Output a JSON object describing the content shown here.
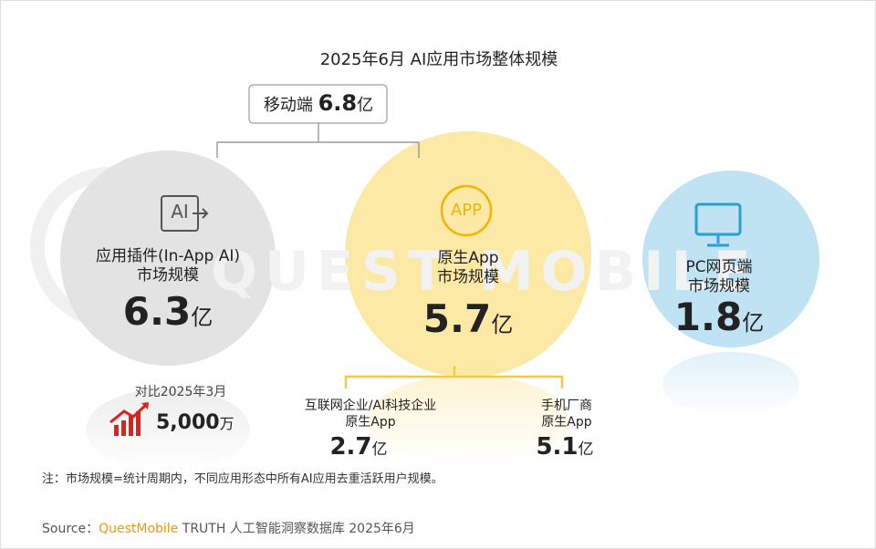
{
  "title": "2025年6月 AI应用市场整体规模",
  "watermark": "QUEST MOBILE",
  "root": {
    "label": "移动端",
    "value": 6.8,
    "unit": "亿"
  },
  "nodes": [
    {
      "icon": "AI",
      "lines": [
        "应用插件(In-App AI)",
        "市场规模"
      ],
      "value": 6.3,
      "unit": "亿"
    },
    {
      "icon": "APP",
      "lines": [
        "原生App",
        "市场规模"
      ],
      "value": 5.7,
      "unit": "亿"
    },
    {
      "lines": [
        "PC网页端",
        "市场规模"
      ],
      "value": 1.8,
      "unit": "亿"
    }
  ],
  "compare": {
    "label": "对比2025年3月",
    "value": "5,000",
    "unit": "万"
  },
  "subnodes": [
    {
      "lines": [
        "互联网企业/AI科技企业",
        "原生App"
      ],
      "value": 2.7,
      "unit": "亿"
    },
    {
      "lines": [
        "手机厂商",
        "原生App"
      ],
      "value": 5.1,
      "unit": "亿"
    }
  ],
  "note": "注：市场规模=统计周期内，不同应用形态中所有AI应用去重活跃用户规模。",
  "source": {
    "prefix": "Source：",
    "brand": "QuestMobile",
    "text": " TRUTH 人工智能洞察数据库 2025年6月"
  }
}
